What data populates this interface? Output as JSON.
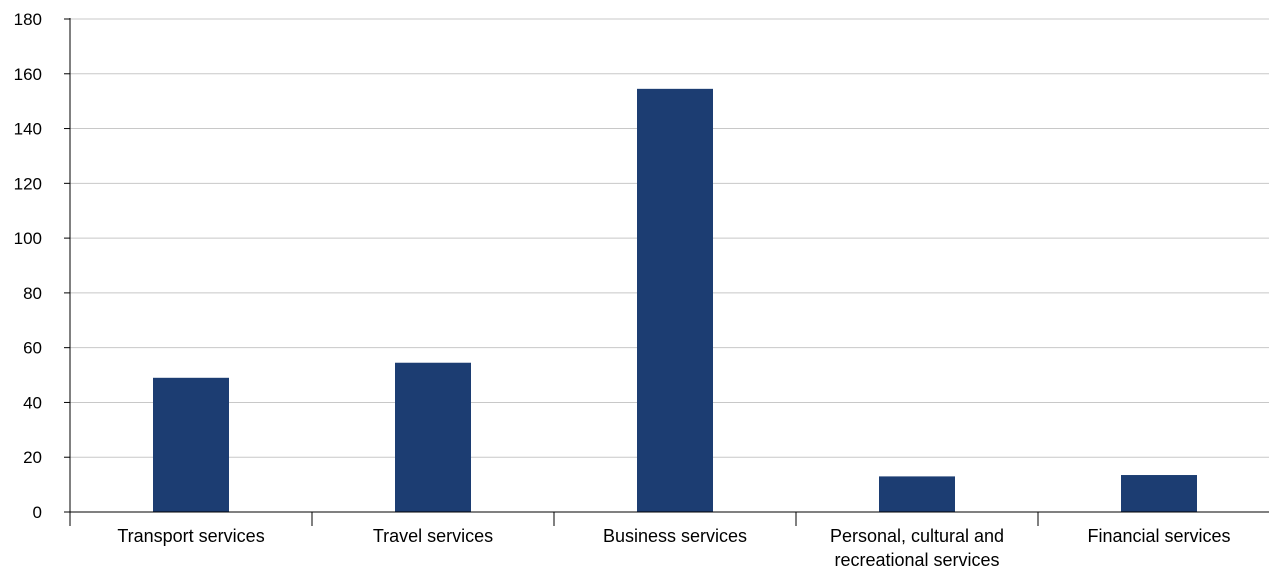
{
  "chart_data": {
    "type": "bar",
    "title": "",
    "xlabel": "",
    "ylabel": "",
    "categories": [
      [
        "Transport services"
      ],
      [
        "Travel services"
      ],
      [
        "Business services"
      ],
      [
        "Personal, cultural and",
        "recreational services"
      ],
      [
        "Financial services"
      ]
    ],
    "values": [
      49,
      54.5,
      154.5,
      13,
      13.5
    ],
    "ylim": [
      0,
      180
    ],
    "yticks": [
      "0",
      "20",
      "40",
      "60",
      "80",
      "100",
      "120",
      "140",
      "160",
      "180"
    ],
    "grid": true,
    "colors": {
      "bar": "#1c3d72",
      "grid": "#c8c8c8",
      "axis": "#000000"
    }
  }
}
